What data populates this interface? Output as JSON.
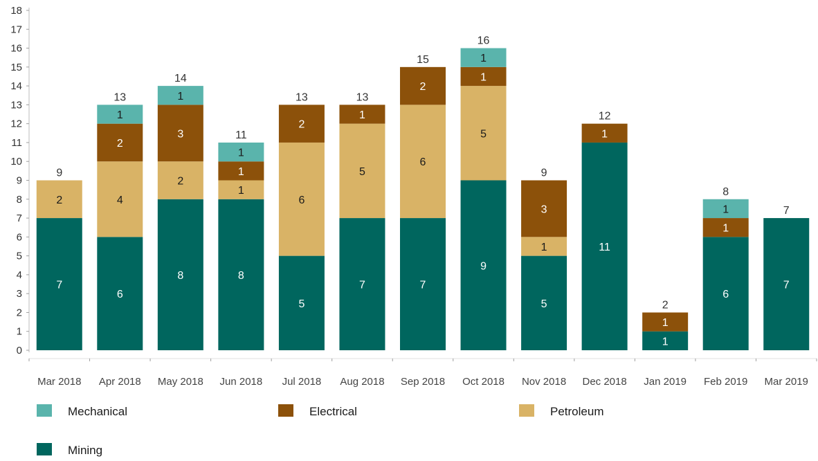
{
  "chart_data": {
    "type": "bar",
    "stacked": true,
    "title": "",
    "xlabel": "",
    "ylabel": "",
    "ylim": [
      0,
      18
    ],
    "yticks": [
      0,
      1,
      2,
      3,
      4,
      5,
      6,
      7,
      8,
      9,
      10,
      11,
      12,
      13,
      14,
      15,
      16,
      17,
      18
    ],
    "grid": false,
    "legend_position": "bottom",
    "categories": [
      "Mar 2018",
      "Apr 2018",
      "May 2018",
      "Jun 2018",
      "Jul 2018",
      "Aug 2018",
      "Sep 2018",
      "Oct 2018",
      "Nov 2018",
      "Dec 2018",
      "Jan 2019",
      "Feb 2019",
      "Mar 2019"
    ],
    "series": [
      {
        "name": "Mining",
        "color": "#00665e",
        "label_color": "#ffffff",
        "values": [
          7,
          6,
          8,
          8,
          5,
          7,
          7,
          9,
          5,
          11,
          1,
          6,
          7
        ]
      },
      {
        "name": "Petroleum",
        "color": "#d9b366",
        "label_color": "#1a1a1a",
        "values": [
          2,
          4,
          2,
          1,
          6,
          5,
          6,
          5,
          1,
          0,
          0,
          0,
          0
        ]
      },
      {
        "name": "Electrical",
        "color": "#8c510a",
        "label_color": "#ffffff",
        "values": [
          0,
          2,
          3,
          1,
          2,
          1,
          2,
          1,
          3,
          1,
          1,
          1,
          0
        ]
      },
      {
        "name": "Mechanical",
        "color": "#5ab4ac",
        "label_color": "#1a1a1a",
        "values": [
          0,
          1,
          1,
          1,
          0,
          0,
          0,
          1,
          0,
          0,
          0,
          1,
          0
        ]
      }
    ],
    "totals": [
      9,
      13,
      14,
      11,
      13,
      13,
      15,
      16,
      9,
      12,
      2,
      8,
      7
    ],
    "legend_order": [
      "Mechanical",
      "Electrical",
      "Petroleum",
      "Mining"
    ]
  }
}
